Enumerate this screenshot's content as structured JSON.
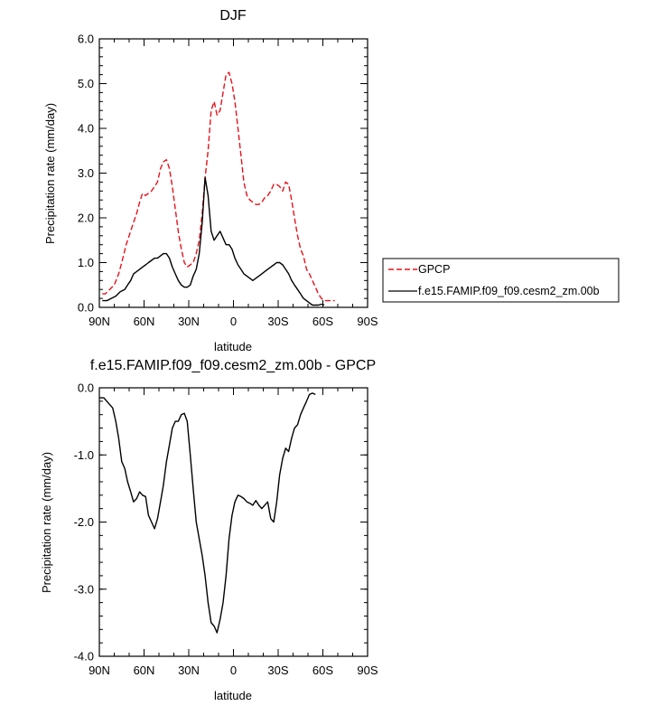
{
  "chart_data": [
    {
      "type": "line",
      "title": "DJF",
      "xlabel": "latitude",
      "ylabel": "Precipitation rate (mm/day)",
      "xlim": [
        90,
        -90
      ],
      "ylim": [
        0,
        6
      ],
      "x_ticks": [
        {
          "value": 90,
          "label": "90N"
        },
        {
          "value": 60,
          "label": "60N"
        },
        {
          "value": 30,
          "label": "30N"
        },
        {
          "value": 0,
          "label": "0"
        },
        {
          "value": -30,
          "label": "30S"
        },
        {
          "value": -60,
          "label": "60S"
        },
        {
          "value": -90,
          "label": "90S"
        }
      ],
      "y_ticks": [
        {
          "value": 0,
          "label": "0.0"
        },
        {
          "value": 1,
          "label": "1.0"
        },
        {
          "value": 2,
          "label": "2.0"
        },
        {
          "value": 3,
          "label": "3.0"
        },
        {
          "value": 4,
          "label": "4.0"
        },
        {
          "value": 5,
          "label": "5.0"
        },
        {
          "value": 6,
          "label": "6.0"
        }
      ],
      "legend_placement": "right",
      "series": [
        {
          "name": "GPCP",
          "color": "#e8101a",
          "dash": "dashed",
          "points": [
            [
              88,
              0.3
            ],
            [
              86,
              0.3
            ],
            [
              83,
              0.4
            ],
            [
              80,
              0.5
            ],
            [
              77,
              0.75
            ],
            [
              75,
              1.0
            ],
            [
              72,
              1.4
            ],
            [
              70,
              1.6
            ],
            [
              67,
              1.9
            ],
            [
              65,
              2.1
            ],
            [
              63,
              2.35
            ],
            [
              61,
              2.55
            ],
            [
              59,
              2.5
            ],
            [
              57,
              2.55
            ],
            [
              55,
              2.6
            ],
            [
              53,
              2.7
            ],
            [
              51,
              2.8
            ],
            [
              49,
              3.1
            ],
            [
              47,
              3.25
            ],
            [
              45,
              3.3
            ],
            [
              43,
              3.1
            ],
            [
              41,
              2.7
            ],
            [
              39,
              2.2
            ],
            [
              37,
              1.7
            ],
            [
              35,
              1.3
            ],
            [
              33,
              1.0
            ],
            [
              31,
              0.9
            ],
            [
              29,
              0.95
            ],
            [
              27,
              1.0
            ],
            [
              25,
              1.2
            ],
            [
              23,
              1.5
            ],
            [
              21,
              2.1
            ],
            [
              19,
              2.9
            ],
            [
              17,
              3.5
            ],
            [
              15,
              4.4
            ],
            [
              13,
              4.6
            ],
            [
              11,
              4.3
            ],
            [
              9,
              4.4
            ],
            [
              7,
              4.8
            ],
            [
              5,
              5.2
            ],
            [
              3,
              5.25
            ],
            [
              1,
              5.0
            ],
            [
              -1,
              4.6
            ],
            [
              -3,
              4.0
            ],
            [
              -5,
              3.4
            ],
            [
              -7,
              2.8
            ],
            [
              -9,
              2.5
            ],
            [
              -11,
              2.4
            ],
            [
              -13,
              2.35
            ],
            [
              -15,
              2.3
            ],
            [
              -17,
              2.3
            ],
            [
              -19,
              2.35
            ],
            [
              -21,
              2.45
            ],
            [
              -23,
              2.5
            ],
            [
              -25,
              2.6
            ],
            [
              -27,
              2.75
            ],
            [
              -29,
              2.75
            ],
            [
              -31,
              2.7
            ],
            [
              -33,
              2.6
            ],
            [
              -35,
              2.8
            ],
            [
              -37,
              2.75
            ],
            [
              -39,
              2.4
            ],
            [
              -41,
              2.0
            ],
            [
              -43,
              1.6
            ],
            [
              -45,
              1.3
            ],
            [
              -47,
              1.15
            ],
            [
              -49,
              0.85
            ],
            [
              -51,
              0.75
            ],
            [
              -53,
              0.6
            ],
            [
              -55,
              0.45
            ],
            [
              -57,
              0.3
            ],
            [
              -59,
              0.2
            ],
            [
              -61,
              0.15
            ],
            [
              -65,
              0.15
            ],
            [
              -68,
              0.15
            ]
          ]
        },
        {
          "name": "f.e15.FAMIP.f09_f09.cesm2_zm.00b",
          "color": "#000000",
          "dash": "solid",
          "points": [
            [
              88,
              0.15
            ],
            [
              85,
              0.15
            ],
            [
              82,
              0.2
            ],
            [
              79,
              0.25
            ],
            [
              76,
              0.35
            ],
            [
              73,
              0.4
            ],
            [
              71,
              0.5
            ],
            [
              69,
              0.6
            ],
            [
              67,
              0.75
            ],
            [
              65,
              0.8
            ],
            [
              63,
              0.85
            ],
            [
              61,
              0.9
            ],
            [
              59,
              0.95
            ],
            [
              57,
              1.0
            ],
            [
              55,
              1.05
            ],
            [
              53,
              1.1
            ],
            [
              51,
              1.1
            ],
            [
              49,
              1.15
            ],
            [
              47,
              1.2
            ],
            [
              45,
              1.2
            ],
            [
              43,
              1.1
            ],
            [
              41,
              0.9
            ],
            [
              39,
              0.75
            ],
            [
              37,
              0.6
            ],
            [
              35,
              0.5
            ],
            [
              33,
              0.45
            ],
            [
              31,
              0.45
            ],
            [
              29,
              0.5
            ],
            [
              27,
              0.7
            ],
            [
              25,
              0.85
            ],
            [
              23,
              1.2
            ],
            [
              21,
              1.9
            ],
            [
              19,
              2.9
            ],
            [
              17,
              2.5
            ],
            [
              15,
              1.7
            ],
            [
              13,
              1.5
            ],
            [
              11,
              1.6
            ],
            [
              9,
              1.7
            ],
            [
              7,
              1.55
            ],
            [
              5,
              1.4
            ],
            [
              3,
              1.4
            ],
            [
              1,
              1.3
            ],
            [
              -1,
              1.1
            ],
            [
              -3,
              0.95
            ],
            [
              -5,
              0.85
            ],
            [
              -7,
              0.75
            ],
            [
              -9,
              0.7
            ],
            [
              -11,
              0.65
            ],
            [
              -13,
              0.6
            ],
            [
              -15,
              0.65
            ],
            [
              -17,
              0.7
            ],
            [
              -19,
              0.75
            ],
            [
              -21,
              0.8
            ],
            [
              -23,
              0.85
            ],
            [
              -25,
              0.9
            ],
            [
              -27,
              0.95
            ],
            [
              -29,
              1.0
            ],
            [
              -31,
              1.0
            ],
            [
              -33,
              0.95
            ],
            [
              -35,
              0.85
            ],
            [
              -37,
              0.75
            ],
            [
              -39,
              0.6
            ],
            [
              -41,
              0.5
            ],
            [
              -43,
              0.4
            ],
            [
              -45,
              0.3
            ],
            [
              -47,
              0.2
            ],
            [
              -49,
              0.15
            ],
            [
              -51,
              0.1
            ],
            [
              -53,
              0.05
            ],
            [
              -55,
              0.05
            ],
            [
              -57,
              0.05
            ],
            [
              -59,
              0.07
            ],
            [
              -61,
              0.05
            ]
          ]
        }
      ]
    },
    {
      "type": "line",
      "title": "f.e15.FAMIP.f09_f09.cesm2_zm.00b - GPCP",
      "xlabel": "latitude",
      "ylabel": "Precipitation rate (mm/day)",
      "xlim": [
        90,
        -90
      ],
      "ylim": [
        -4,
        0
      ],
      "x_ticks": [
        {
          "value": 90,
          "label": "90N"
        },
        {
          "value": 60,
          "label": "60N"
        },
        {
          "value": 30,
          "label": "30N"
        },
        {
          "value": 0,
          "label": "0"
        },
        {
          "value": -30,
          "label": "30S"
        },
        {
          "value": -60,
          "label": "60S"
        },
        {
          "value": -90,
          "label": "90S"
        }
      ],
      "y_ticks": [
        {
          "value": 0,
          "label": "0.0"
        },
        {
          "value": -1,
          "label": "-1.0"
        },
        {
          "value": -2,
          "label": "-2.0"
        },
        {
          "value": -3,
          "label": "-3.0"
        },
        {
          "value": -4,
          "label": "-4.0"
        }
      ],
      "series": [
        {
          "color": "#000000",
          "dash": "solid",
          "points": [
            [
              90,
              -0.15
            ],
            [
              87,
              -0.15
            ],
            [
              85,
              -0.2
            ],
            [
              83,
              -0.25
            ],
            [
              81,
              -0.3
            ],
            [
              79,
              -0.5
            ],
            [
              77,
              -0.75
            ],
            [
              75,
              -1.1
            ],
            [
              73,
              -1.2
            ],
            [
              71,
              -1.4
            ],
            [
              69,
              -1.55
            ],
            [
              67,
              -1.7
            ],
            [
              65,
              -1.65
            ],
            [
              63,
              -1.55
            ],
            [
              61,
              -1.6
            ],
            [
              59,
              -1.62
            ],
            [
              57,
              -1.9
            ],
            [
              55,
              -2.0
            ],
            [
              53,
              -2.1
            ],
            [
              51,
              -1.95
            ],
            [
              49,
              -1.7
            ],
            [
              47,
              -1.45
            ],
            [
              45,
              -1.1
            ],
            [
              43,
              -0.85
            ],
            [
              41,
              -0.6
            ],
            [
              39,
              -0.5
            ],
            [
              37,
              -0.5
            ],
            [
              35,
              -0.4
            ],
            [
              33,
              -0.38
            ],
            [
              31,
              -0.5
            ],
            [
              29,
              -1.0
            ],
            [
              27,
              -1.5
            ],
            [
              25,
              -2.0
            ],
            [
              23,
              -2.25
            ],
            [
              21,
              -2.5
            ],
            [
              19,
              -2.8
            ],
            [
              17,
              -3.2
            ],
            [
              15,
              -3.5
            ],
            [
              13,
              -3.55
            ],
            [
              11,
              -3.65
            ],
            [
              9,
              -3.45
            ],
            [
              7,
              -3.2
            ],
            [
              5,
              -2.8
            ],
            [
              3,
              -2.25
            ],
            [
              1,
              -1.9
            ],
            [
              -1,
              -1.7
            ],
            [
              -3,
              -1.6
            ],
            [
              -5,
              -1.62
            ],
            [
              -7,
              -1.65
            ],
            [
              -9,
              -1.7
            ],
            [
              -11,
              -1.72
            ],
            [
              -13,
              -1.75
            ],
            [
              -15,
              -1.68
            ],
            [
              -17,
              -1.75
            ],
            [
              -19,
              -1.8
            ],
            [
              -21,
              -1.75
            ],
            [
              -23,
              -1.7
            ],
            [
              -25,
              -1.95
            ],
            [
              -27,
              -2.0
            ],
            [
              -29,
              -1.7
            ],
            [
              -31,
              -1.3
            ],
            [
              -33,
              -1.05
            ],
            [
              -35,
              -0.9
            ],
            [
              -37,
              -0.95
            ],
            [
              -39,
              -0.75
            ],
            [
              -41,
              -0.6
            ],
            [
              -43,
              -0.55
            ],
            [
              -45,
              -0.4
            ],
            [
              -47,
              -0.3
            ],
            [
              -49,
              -0.2
            ],
            [
              -51,
              -0.1
            ],
            [
              -53,
              -0.08
            ],
            [
              -55,
              -0.1
            ]
          ]
        }
      ]
    }
  ]
}
